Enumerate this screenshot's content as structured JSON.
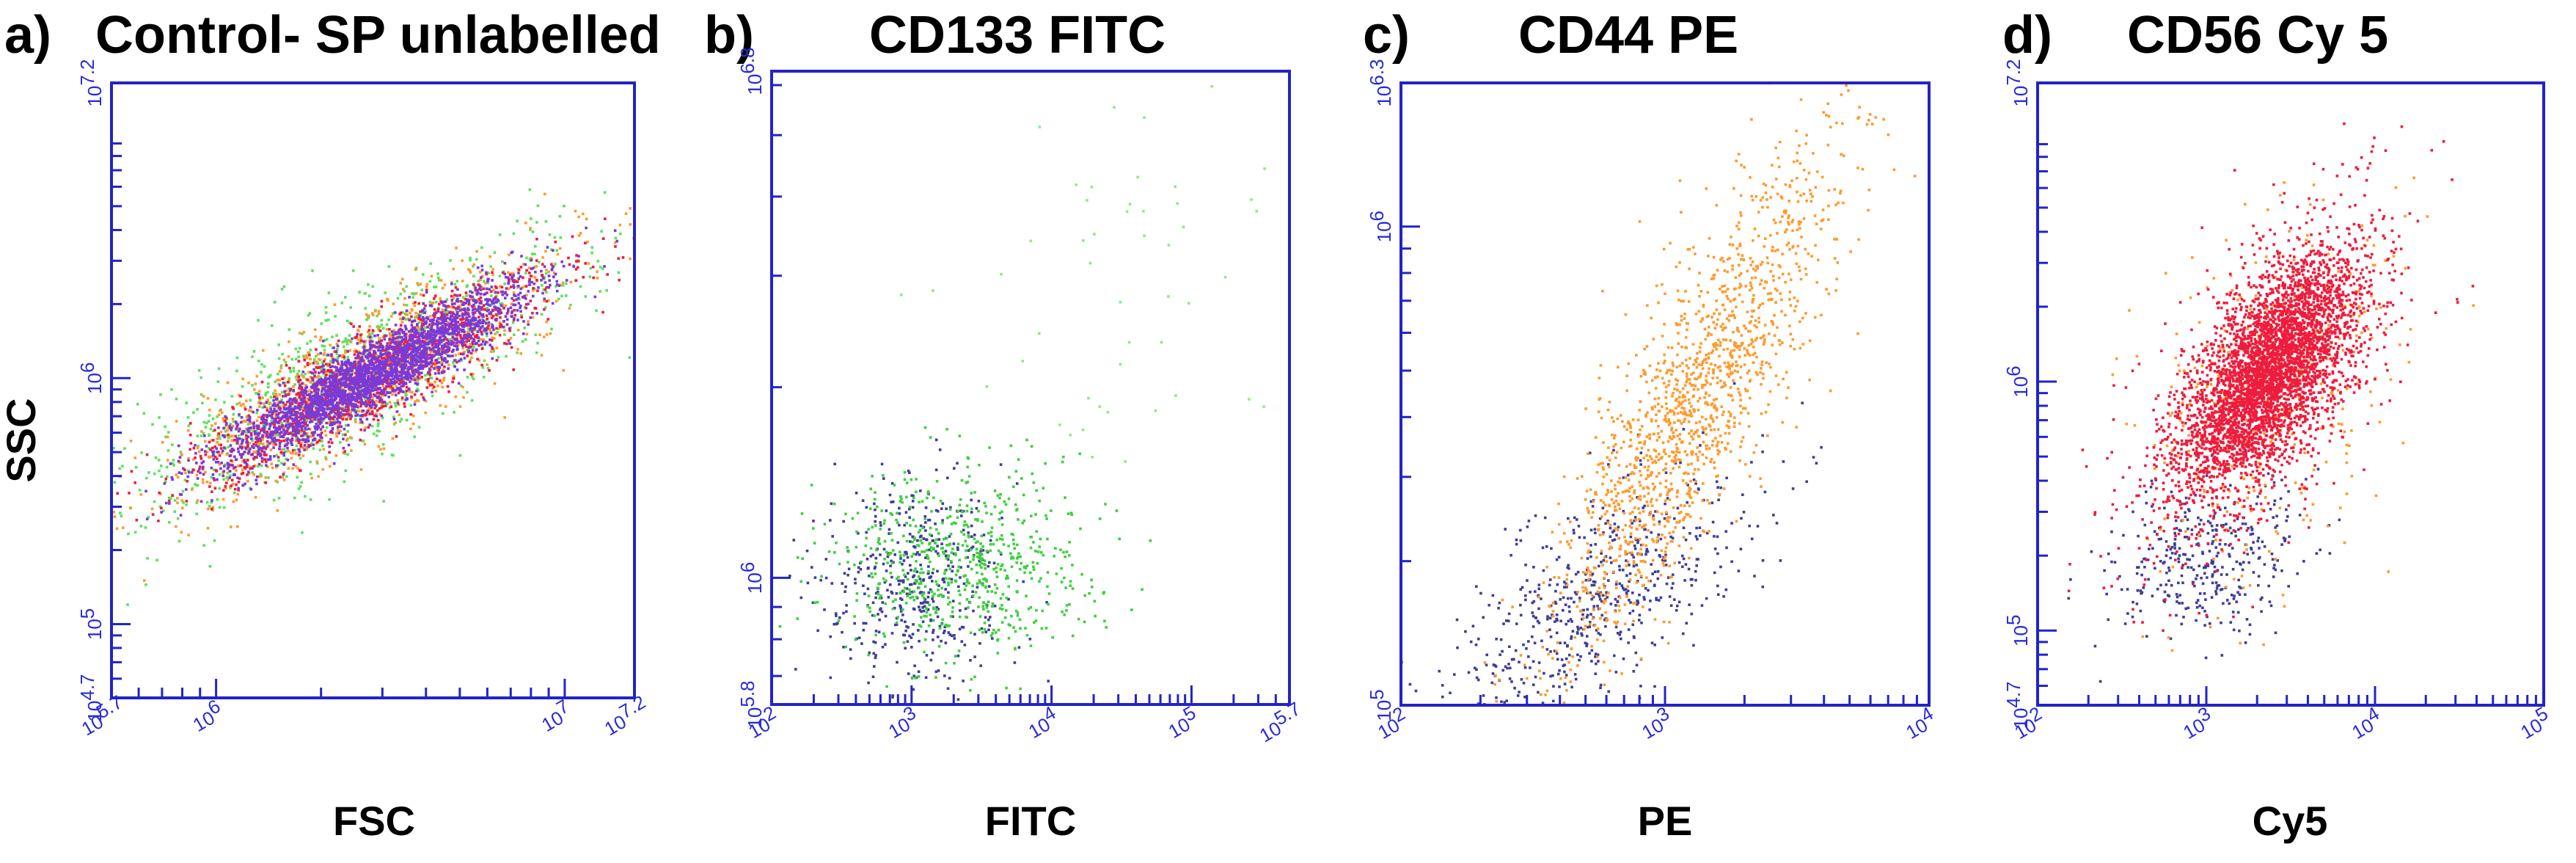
{
  "figure": {
    "ylabel_shared": "SSC"
  },
  "colors": {
    "green": "#5fe05f",
    "orange": "#ff9a2e",
    "red": "#ee1c3c",
    "purple": "#7a3ad8",
    "navy": "#3e3e96",
    "axis": "#2323c8"
  },
  "chart_data": [
    {
      "type": "scatter",
      "panel": "a)",
      "title": "Control- SP unlabelled",
      "xlabel": "FSC",
      "ylabel": "SSC",
      "xlim": [
        5.7,
        7.2
      ],
      "ylim": [
        4.7,
        7.2
      ],
      "x_ticks": [
        {
          "pos": 5.7,
          "base": "10",
          "exp": "5.7"
        },
        {
          "pos": 6.0,
          "base": "10",
          "exp": "6"
        },
        {
          "pos": 7.0,
          "base": "10",
          "exp": "7"
        },
        {
          "pos": 7.2,
          "base": "10",
          "exp": "7.2"
        }
      ],
      "y_ticks": [
        {
          "pos": 4.7,
          "base": "10",
          "exp": "4.7"
        },
        {
          "pos": 5.0,
          "base": "10",
          "exp": "5"
        },
        {
          "pos": 6.0,
          "base": "10",
          "exp": "6"
        },
        {
          "pos": 7.2,
          "base": "10",
          "exp": "7.2"
        }
      ],
      "populations": [
        {
          "name": "green",
          "color": "#5fe05f",
          "n": 1000,
          "center": [
            6.38,
            6.0
          ],
          "angle_deg": 40,
          "sd": [
            0.42,
            0.13
          ]
        },
        {
          "name": "orange",
          "color": "#ff9a2e",
          "n": 1100,
          "center": [
            6.42,
            6.0
          ],
          "angle_deg": 40,
          "sd": [
            0.36,
            0.1
          ]
        },
        {
          "name": "red",
          "color": "#ee1c3c",
          "n": 1100,
          "center": [
            6.46,
            6.02
          ],
          "angle_deg": 40,
          "sd": [
            0.32,
            0.075
          ]
        },
        {
          "name": "purple",
          "color": "#7a3ad8",
          "n": 2600,
          "center": [
            6.46,
            6.02
          ],
          "angle_deg": 40,
          "sd": [
            0.27,
            0.055
          ]
        }
      ]
    },
    {
      "type": "scatter",
      "panel": "b)",
      "title": "CD133 FITC",
      "xlabel": "FITC",
      "ylabel": "",
      "xlim": [
        2.0,
        5.7
      ],
      "ylim": [
        5.8,
        6.8
      ],
      "x_ticks": [
        {
          "pos": 2.0,
          "base": "10",
          "exp": "2"
        },
        {
          "pos": 3.0,
          "base": "10",
          "exp": "3"
        },
        {
          "pos": 4.0,
          "base": "10",
          "exp": "4"
        },
        {
          "pos": 5.0,
          "base": "10",
          "exp": "5"
        },
        {
          "pos": 5.7,
          "base": "10",
          "exp": "5.7"
        }
      ],
      "y_ticks": [
        {
          "pos": 5.8,
          "base": "10",
          "exp": "5.8"
        },
        {
          "pos": 6.0,
          "base": "10",
          "exp": "6"
        },
        {
          "pos": 6.8,
          "base": "10",
          "exp": "6.8"
        }
      ],
      "populations": [
        {
          "name": "navy",
          "color": "#3e3e96",
          "n": 450,
          "center": [
            3.0,
            5.98
          ],
          "angle_deg": 0,
          "sd": [
            0.34,
            0.085
          ]
        },
        {
          "name": "green",
          "color": "#3fcf3f",
          "n": 650,
          "center": [
            3.35,
            6.02
          ],
          "angle_deg": 0,
          "sd": [
            0.45,
            0.075
          ]
        },
        {
          "name": "green-sparse",
          "color": "#8fe88f",
          "n": 55,
          "center": [
            4.4,
            6.45
          ],
          "angle_deg": 0,
          "sd": [
            0.8,
            0.18
          ]
        }
      ]
    },
    {
      "type": "scatter",
      "panel": "c)",
      "title": "CD44 PE",
      "xlabel": "PE",
      "ylabel": "",
      "xlim": [
        2.0,
        4.0
      ],
      "ylim": [
        5.0,
        6.3
      ],
      "x_ticks": [
        {
          "pos": 2.0,
          "base": "10",
          "exp": "2"
        },
        {
          "pos": 3.0,
          "base": "10",
          "exp": "3"
        },
        {
          "pos": 4.0,
          "base": "10",
          "exp": "4"
        }
      ],
      "y_ticks": [
        {
          "pos": 5.0,
          "base": "10",
          "exp": "5"
        },
        {
          "pos": 6.0,
          "base": "10",
          "exp": "6"
        },
        {
          "pos": 6.3,
          "base": "10",
          "exp": "6.3"
        }
      ],
      "populations": [
        {
          "name": "navy",
          "color": "#3e3e96",
          "n": 600,
          "center": [
            2.75,
            5.22
          ],
          "angle_deg": 20,
          "sd": [
            0.3,
            0.1
          ]
        },
        {
          "name": "orange",
          "color": "#ff9a2e",
          "n": 1500,
          "center": [
            3.1,
            5.62
          ],
          "angle_deg": 45,
          "sd": [
            0.38,
            0.11
          ]
        }
      ]
    },
    {
      "type": "scatter",
      "panel": "d)",
      "title": "CD56 Cy 5",
      "xlabel": "Cy5",
      "ylabel": "",
      "xlim": [
        2.0,
        5.0
      ],
      "ylim": [
        4.7,
        7.2
      ],
      "x_ticks": [
        {
          "pos": 2.0,
          "base": "10",
          "exp": "2"
        },
        {
          "pos": 3.0,
          "base": "10",
          "exp": "3"
        },
        {
          "pos": 4.0,
          "base": "10",
          "exp": "4"
        },
        {
          "pos": 5.0,
          "base": "10",
          "exp": "5"
        }
      ],
      "y_ticks": [
        {
          "pos": 4.7,
          "base": "10",
          "exp": "4.7"
        },
        {
          "pos": 5.0,
          "base": "10",
          "exp": "5"
        },
        {
          "pos": 6.0,
          "base": "10",
          "exp": "6"
        },
        {
          "pos": 7.2,
          "base": "10",
          "exp": "7.2"
        }
      ],
      "populations": [
        {
          "name": "navy",
          "color": "#3e3e96",
          "n": 350,
          "center": [
            3.0,
            5.28
          ],
          "angle_deg": 10,
          "sd": [
            0.3,
            0.15
          ]
        },
        {
          "name": "orange",
          "color": "#ff9a2e",
          "n": 400,
          "center": [
            3.35,
            5.95
          ],
          "angle_deg": 40,
          "sd": [
            0.45,
            0.28
          ]
        },
        {
          "name": "red-halo",
          "color": "#ee1c3c",
          "n": 1200,
          "center": [
            3.35,
            6.0
          ],
          "angle_deg": 40,
          "sd": [
            0.48,
            0.22
          ]
        },
        {
          "name": "red-core",
          "color": "#ee1c3c",
          "n": 3200,
          "center": [
            3.38,
            6.05
          ],
          "angle_deg": 40,
          "sd": [
            0.3,
            0.14
          ]
        }
      ]
    }
  ]
}
